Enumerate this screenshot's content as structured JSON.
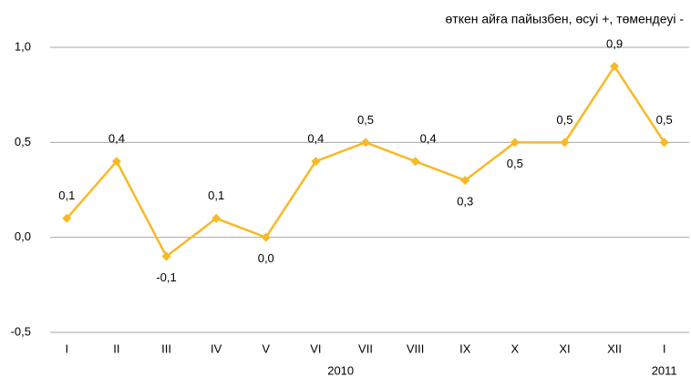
{
  "chart_data": {
    "type": "line",
    "subtitle": "өткен айға пайызбен, өсуі +, төмендеуі -",
    "categories": [
      "I",
      "II",
      "III",
      "IV",
      "V",
      "VI",
      "VII",
      "VIII",
      "IX",
      "X",
      "XI",
      "XII",
      "I"
    ],
    "year_labels": [
      "2010",
      "2011"
    ],
    "series": [
      {
        "name": null,
        "color": "#f7b925",
        "values": [
          0.1,
          0.4,
          -0.1,
          0.1,
          0.0,
          0.4,
          0.5,
          0.4,
          0.3,
          0.5,
          0.5,
          0.9,
          0.5
        ],
        "value_labels": [
          "0,1",
          "0,4",
          "-0,1",
          "0,1",
          "0,0",
          "0,4",
          "0,5",
          "0,4",
          "0,3",
          "0,5",
          "0,5",
          "0,9",
          "0,5"
        ]
      }
    ],
    "ylim": [
      -0.5,
      1.0
    ],
    "yticks": [
      {
        "value": -0.5,
        "label": "-0,5"
      },
      {
        "value": 0.0,
        "label": "0,0"
      },
      {
        "value": 0.5,
        "label": "0,5"
      },
      {
        "value": 1.0,
        "label": "1,0"
      }
    ],
    "grid": true
  }
}
